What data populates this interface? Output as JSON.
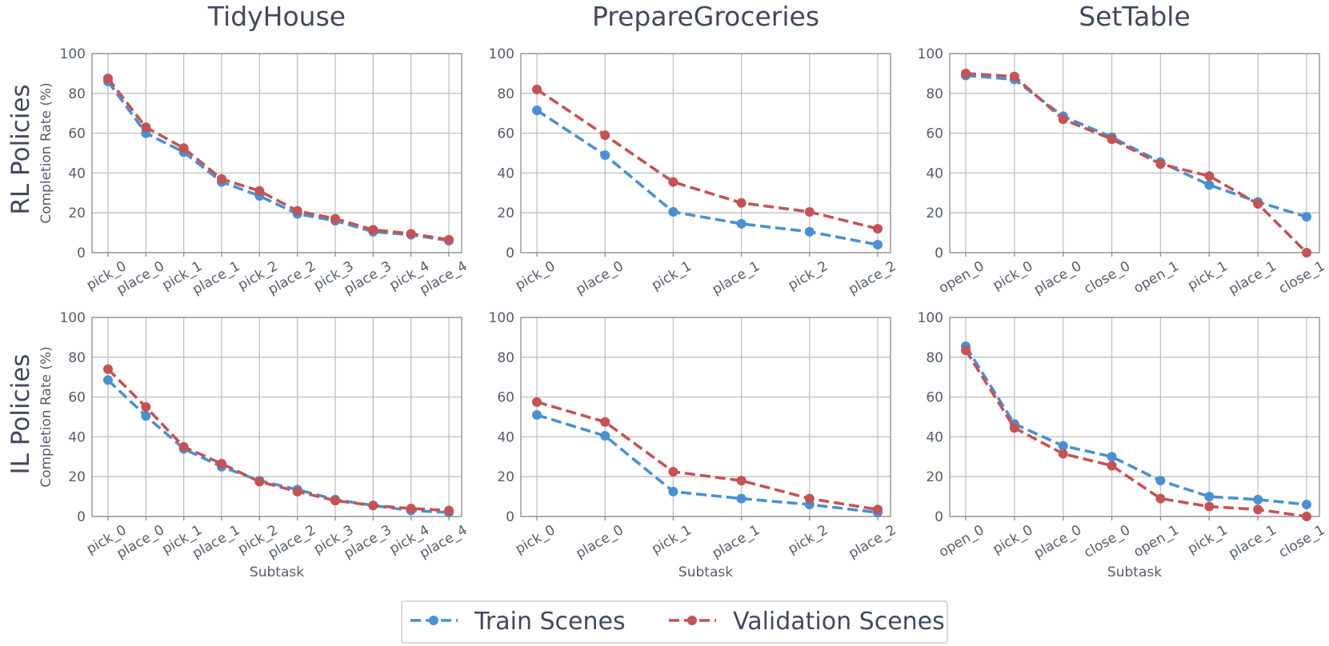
{
  "figure": {
    "row_titles": [
      "RL Policies",
      "IL Policies"
    ],
    "ylabel": "Completion Rate (%)",
    "xlabel": "Subtask",
    "yticks": [
      "0",
      "20",
      "40",
      "60",
      "80",
      "100"
    ],
    "legend": [
      {
        "label": "Train Scenes",
        "color": "#4a90d0"
      },
      {
        "label": "Validation Scenes",
        "color": "#c45355"
      }
    ]
  },
  "chart_data": [
    {
      "type": "line",
      "title": "TidyHouse",
      "row": "RL Policies",
      "xlabel": "",
      "ylabel": "Completion Rate (%)",
      "ylim": [
        0,
        100
      ],
      "grid": true,
      "categories": [
        "pick_0",
        "place_0",
        "pick_1",
        "place_1",
        "pick_2",
        "place_2",
        "pick_3",
        "place_3",
        "pick_4",
        "place_4"
      ],
      "series": [
        {
          "name": "Train Scenes",
          "values": [
            86,
            60,
            50.5,
            35.5,
            28.5,
            19.5,
            16,
            10.5,
            9,
            6
          ]
        },
        {
          "name": "Validation Scenes",
          "values": [
            87.5,
            63,
            52.5,
            37,
            31,
            21,
            17,
            11.5,
            9.5,
            6.5
          ]
        }
      ]
    },
    {
      "type": "line",
      "title": "PrepareGroceries",
      "row": "RL Policies",
      "xlabel": "",
      "ylabel": "",
      "ylim": [
        0,
        100
      ],
      "grid": true,
      "categories": [
        "pick_0",
        "place_0",
        "pick_1",
        "place_1",
        "pick_2",
        "place_2"
      ],
      "series": [
        {
          "name": "Train Scenes",
          "values": [
            71.5,
            49,
            20.5,
            14.5,
            10.5,
            4
          ]
        },
        {
          "name": "Validation Scenes",
          "values": [
            82,
            59,
            35.5,
            25,
            20.5,
            12
          ]
        }
      ]
    },
    {
      "type": "line",
      "title": "SetTable",
      "row": "RL Policies",
      "xlabel": "",
      "ylabel": "",
      "ylim": [
        0,
        100
      ],
      "grid": true,
      "categories": [
        "open_0",
        "pick_0",
        "place_0",
        "close_0",
        "open_1",
        "pick_1",
        "place_1",
        "close_1"
      ],
      "series": [
        {
          "name": "Train Scenes",
          "values": [
            89,
            87,
            68.5,
            58,
            45.5,
            34,
            25.5,
            18
          ]
        },
        {
          "name": "Validation Scenes",
          "values": [
            90,
            88.5,
            67,
            57,
            44.5,
            38.5,
            24.5,
            0
          ]
        }
      ]
    },
    {
      "type": "line",
      "title": "",
      "row": "IL Policies",
      "xlabel": "Subtask",
      "ylabel": "Completion Rate (%)",
      "ylim": [
        0,
        100
      ],
      "grid": true,
      "categories": [
        "pick_0",
        "place_0",
        "pick_1",
        "place_1",
        "pick_2",
        "place_2",
        "pick_3",
        "place_3",
        "pick_4",
        "place_4"
      ],
      "series": [
        {
          "name": "Train Scenes",
          "values": [
            68.5,
            50.5,
            34,
            25,
            18,
            13.5,
            8.5,
            5.5,
            3,
            2
          ]
        },
        {
          "name": "Validation Scenes",
          "values": [
            74,
            55,
            35,
            26.5,
            17.5,
            12.5,
            8,
            5.5,
            4,
            3
          ]
        }
      ]
    },
    {
      "type": "line",
      "title": "",
      "row": "IL Policies",
      "xlabel": "Subtask",
      "ylabel": "",
      "ylim": [
        0,
        100
      ],
      "grid": true,
      "categories": [
        "pick_0",
        "place_0",
        "pick_1",
        "place_1",
        "pick_2",
        "place_2"
      ],
      "series": [
        {
          "name": "Train Scenes",
          "values": [
            51,
            40.5,
            12.5,
            9,
            6,
            2
          ]
        },
        {
          "name": "Validation Scenes",
          "values": [
            57.5,
            47.5,
            22.5,
            18,
            9,
            3.5
          ]
        }
      ]
    },
    {
      "type": "line",
      "title": "",
      "row": "IL Policies",
      "xlabel": "Subtask",
      "ylabel": "",
      "ylim": [
        0,
        100
      ],
      "grid": true,
      "categories": [
        "open_0",
        "pick_0",
        "place_0",
        "close_0",
        "open_1",
        "pick_1",
        "place_1",
        "close_1"
      ],
      "series": [
        {
          "name": "Train Scenes",
          "values": [
            85.5,
            46.5,
            35.5,
            30,
            18,
            10,
            8.5,
            6
          ]
        },
        {
          "name": "Validation Scenes",
          "values": [
            83.5,
            44.5,
            31.5,
            25.5,
            9,
            5,
            3.5,
            0
          ]
        }
      ]
    }
  ]
}
